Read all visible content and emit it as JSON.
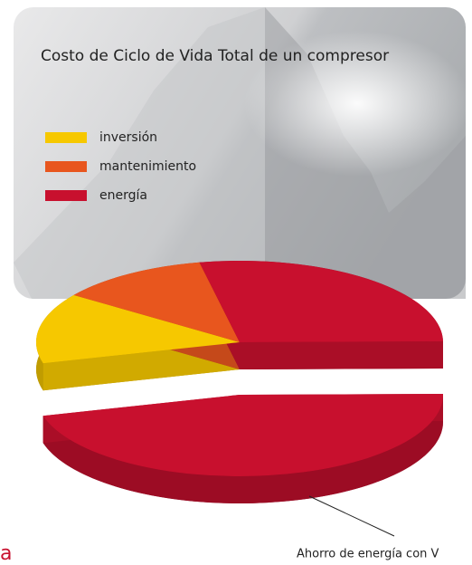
{
  "chart_data": {
    "type": "pie",
    "title": "Costo de Ciclo de Vida Total de un compresor",
    "categories": [
      "inversión",
      "mantenimiento",
      "energía",
      null
    ],
    "values": [
      14,
      12,
      28,
      46
    ],
    "colors": [
      "#f6c800",
      "#e8561e",
      "#c8102e",
      "#c8102e"
    ],
    "annotation": "Ahorro de energía con V",
    "fragment": "a"
  }
}
